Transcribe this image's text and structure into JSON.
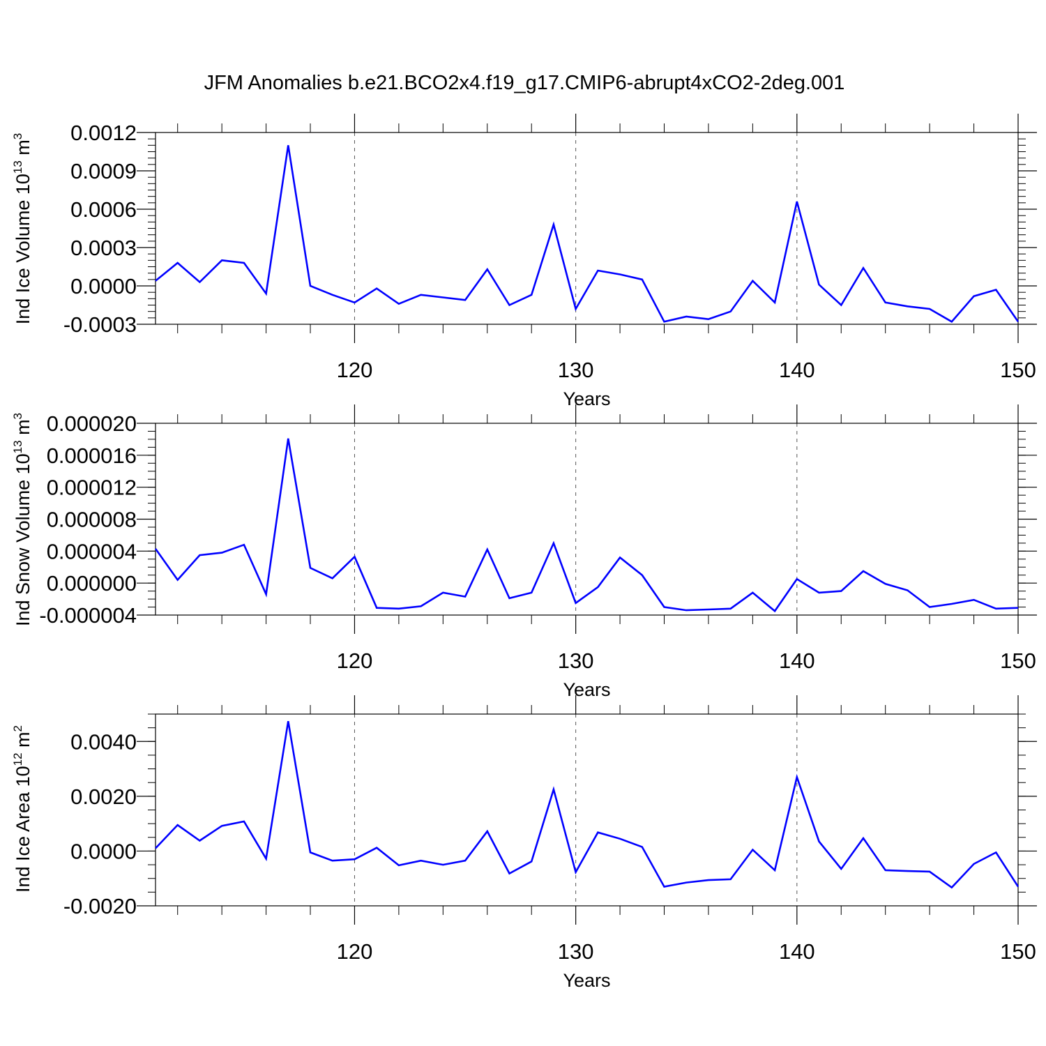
{
  "title": "JFM Anomalies b.e21.BCO2x4.f19_g17.CMIP6-abrupt4xCO2-2deg.001",
  "chart_data": [
    {
      "type": "line",
      "ylabel": "Ind Ice Volume 10",
      "ylabel_sup": "13",
      "ylabel_unit": "m",
      "ylabel_unit_sup": "3",
      "xlabel": "Years",
      "xlim": [
        111,
        150
      ],
      "ylim": [
        -0.0003,
        0.0012
      ],
      "ytick_values": [
        -0.0003,
        0,
        0.0003,
        0.0006,
        0.0009,
        0.0012
      ],
      "ytick_labels": [
        "-0.0003",
        "0.0000",
        "0.0003",
        "0.0006",
        "0.0009",
        "0.0012"
      ],
      "xtick_values": [
        120,
        130,
        140,
        150
      ],
      "xtick_labels": [
        "120",
        "130",
        "140",
        "150"
      ],
      "color": "#0000ff",
      "x": [
        111,
        112,
        113,
        114,
        115,
        116,
        117,
        118,
        119,
        120,
        121,
        122,
        123,
        124,
        125,
        126,
        127,
        128,
        129,
        130,
        131,
        132,
        133,
        134,
        135,
        136,
        137,
        138,
        139,
        140,
        141,
        142,
        143,
        144,
        145,
        146,
        147,
        148,
        149,
        150
      ],
      "series": [
        {
          "values": [
            4e-05,
            0.00018,
            3e-05,
            0.0002,
            0.00018,
            -6e-05,
            0.0011,
            0.0,
            -7e-05,
            -0.00013,
            -2e-05,
            -0.00014,
            -7e-05,
            -9e-05,
            -0.00011,
            0.00013,
            -0.00015,
            -7e-05,
            0.00048,
            -0.00018,
            0.00012,
            9e-05,
            5e-05,
            -0.00028,
            -0.00024,
            -0.00026,
            -0.0002,
            4e-05,
            -0.00013,
            0.00066,
            1e-05,
            -0.00015,
            0.00014,
            -0.00013,
            -0.00016,
            -0.00018,
            -0.00028,
            -8e-05,
            -3e-05,
            -0.00028
          ]
        }
      ]
    },
    {
      "type": "line",
      "ylabel": "Ind Snow Volume 10",
      "ylabel_sup": "13",
      "ylabel_unit": "m",
      "ylabel_unit_sup": "3",
      "xlabel": "Years",
      "xlim": [
        111,
        150
      ],
      "ylim": [
        -4e-06,
        2e-05
      ],
      "ytick_values": [
        -4e-06,
        0,
        4e-06,
        8e-06,
        1.2e-05,
        1.6e-05,
        2e-05
      ],
      "ytick_labels": [
        "-0.000004",
        "0.000000",
        "0.000004",
        "0.000008",
        "0.000012",
        "0.000016",
        "0.000020"
      ],
      "xtick_values": [
        120,
        130,
        140,
        150
      ],
      "xtick_labels": [
        "120",
        "130",
        "140",
        "150"
      ],
      "color": "#0000ff",
      "x": [
        111,
        112,
        113,
        114,
        115,
        116,
        117,
        118,
        119,
        120,
        121,
        122,
        123,
        124,
        125,
        126,
        127,
        128,
        129,
        130,
        131,
        132,
        133,
        134,
        135,
        136,
        137,
        138,
        139,
        140,
        141,
        142,
        143,
        144,
        145,
        146,
        147,
        148,
        149,
        150
      ],
      "series": [
        {
          "values": [
            4.3e-06,
            4e-07,
            3.5e-06,
            3.8e-06,
            4.8e-06,
            -1.4e-06,
            1.81e-05,
            1.9e-06,
            6e-07,
            3.3e-06,
            -3.1e-06,
            -3.2e-06,
            -2.9e-06,
            -1.2e-06,
            -1.7e-06,
            4.2e-06,
            -1.9e-06,
            -1.2e-06,
            5e-06,
            -2.5e-06,
            -5e-07,
            3.2e-06,
            1e-06,
            -3e-06,
            -3.4e-06,
            -3.3e-06,
            -3.2e-06,
            -1.2e-06,
            -3.5e-06,
            5e-07,
            -1.2e-06,
            -1e-06,
            1.5e-06,
            -1e-07,
            -9e-07,
            -3e-06,
            -2.6e-06,
            -2.1e-06,
            -3.2e-06,
            -3.1e-06
          ]
        }
      ]
    },
    {
      "type": "line",
      "ylabel": "Ind Ice Area 10",
      "ylabel_sup": "12",
      "ylabel_unit": "m",
      "ylabel_unit_sup": "2",
      "xlabel": "Years",
      "xlim": [
        111,
        150
      ],
      "ylim": [
        -0.002,
        0.005
      ],
      "ytick_values": [
        -0.002,
        0,
        0.002,
        0.004
      ],
      "ytick_labels": [
        "-0.0020",
        "0.0000",
        "0.0020",
        "0.0040"
      ],
      "xtick_values": [
        120,
        130,
        140,
        150
      ],
      "xtick_labels": [
        "120",
        "130",
        "140",
        "150"
      ],
      "color": "#0000ff",
      "x": [
        111,
        112,
        113,
        114,
        115,
        116,
        117,
        118,
        119,
        120,
        121,
        122,
        123,
        124,
        125,
        126,
        127,
        128,
        129,
        130,
        131,
        132,
        133,
        134,
        135,
        136,
        137,
        138,
        139,
        140,
        141,
        142,
        143,
        144,
        145,
        146,
        147,
        148,
        149,
        150
      ],
      "series": [
        {
          "values": [
            0.0001,
            0.00095,
            0.00038,
            0.00092,
            0.00108,
            -0.00028,
            0.00474,
            -5e-05,
            -0.00035,
            -0.0003,
            0.00012,
            -0.00052,
            -0.00035,
            -0.0005,
            -0.00035,
            0.00072,
            -0.00082,
            -0.00038,
            0.00225,
            -0.00077,
            0.00068,
            0.00045,
            0.00015,
            -0.0013,
            -0.00115,
            -0.00106,
            -0.00103,
            5e-05,
            -0.0007,
            0.0027,
            0.00035,
            -0.00065,
            0.00047,
            -0.0007,
            -0.00073,
            -0.00075,
            -0.00133,
            -0.00047,
            -5e-05,
            -0.0013
          ]
        }
      ]
    }
  ]
}
